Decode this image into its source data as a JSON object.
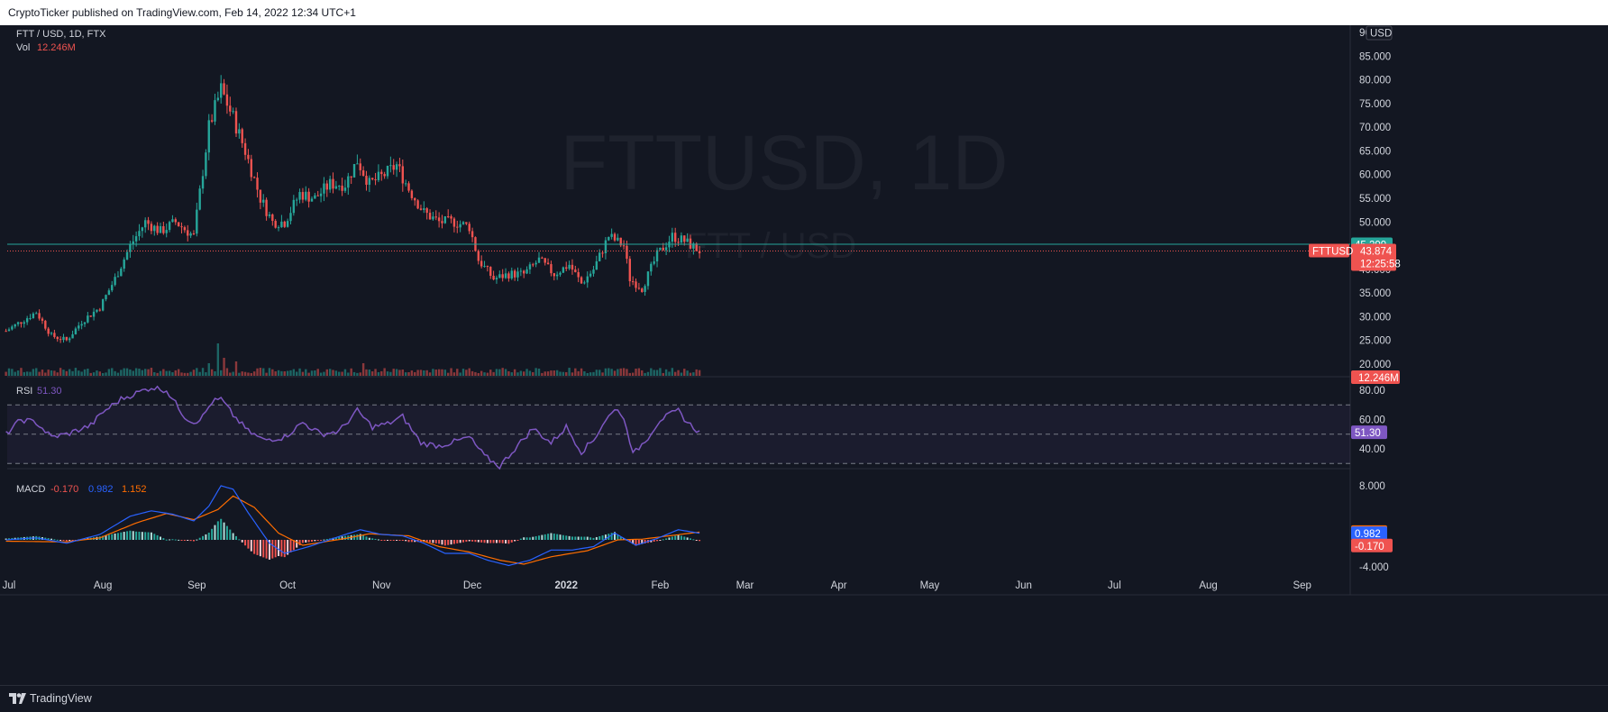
{
  "header": {
    "published_text": "CryptoTicker published on TradingView.com, Feb 14, 2022 12:34 UTC+1"
  },
  "footer": {
    "brand": "TradingView"
  },
  "colors": {
    "up": "#26a69a",
    "down": "#ef5350",
    "rsi": "#7e57c2",
    "macd": "#2962ff",
    "signal": "#ff6d00",
    "background": "#131722"
  },
  "watermark": {
    "symbol": "FTTUSD, 1D",
    "pair": "FTT / USD"
  },
  "chart_data": [
    {
      "type": "candlestick",
      "title": "FTT / USD, 1D, FTX",
      "volume_label": "Vol",
      "volume_value": "12.246M",
      "price_axis": {
        "ticks": [
          "90.000",
          "85.000",
          "80.000",
          "75.000",
          "70.000",
          "65.000",
          "60.000",
          "55.000",
          "50.000",
          "45.000",
          "40.000",
          "35.000",
          "30.000",
          "25.000",
          "20.000"
        ],
        "ylim": [
          20,
          90
        ],
        "currency": "USD"
      },
      "x_axis": {
        "ticks": [
          "Jul",
          "Aug",
          "Sep",
          "Oct",
          "Nov",
          "Dec",
          "2022",
          "Feb",
          "Mar",
          "Apr",
          "May",
          "Jun",
          "Jul",
          "Aug",
          "Sep"
        ]
      },
      "price_keypoints": [
        [
          "2021-06-30",
          27
        ],
        [
          "2021-07-05",
          29
        ],
        [
          "2021-07-10",
          31
        ],
        [
          "2021-07-15",
          26
        ],
        [
          "2021-07-20",
          25
        ],
        [
          "2021-07-25",
          29
        ],
        [
          "2021-07-31",
          32
        ],
        [
          "2021-08-05",
          38
        ],
        [
          "2021-08-10",
          45
        ],
        [
          "2021-08-15",
          50
        ],
        [
          "2021-08-20",
          48
        ],
        [
          "2021-08-25",
          50
        ],
        [
          "2021-08-31",
          47
        ],
        [
          "2021-09-05",
          70
        ],
        [
          "2021-09-09",
          78
        ],
        [
          "2021-09-13",
          72
        ],
        [
          "2021-09-17",
          65
        ],
        [
          "2021-09-22",
          55
        ],
        [
          "2021-09-26",
          50
        ],
        [
          "2021-09-30",
          50
        ],
        [
          "2021-10-05",
          56
        ],
        [
          "2021-10-10",
          55
        ],
        [
          "2021-10-15",
          58
        ],
        [
          "2021-10-20",
          58
        ],
        [
          "2021-10-24",
          63
        ],
        [
          "2021-10-28",
          58
        ],
        [
          "2021-11-02",
          60
        ],
        [
          "2021-11-06",
          62
        ],
        [
          "2021-11-10",
          57
        ],
        [
          "2021-11-15",
          52
        ],
        [
          "2021-11-20",
          50
        ],
        [
          "2021-11-25",
          50
        ],
        [
          "2021-11-30",
          49
        ],
        [
          "2021-12-03",
          42
        ],
        [
          "2021-12-08",
          38
        ],
        [
          "2021-12-13",
          39
        ],
        [
          "2021-12-18",
          39
        ],
        [
          "2021-12-23",
          42
        ],
        [
          "2021-12-28",
          39
        ],
        [
          "2022-01-02",
          41
        ],
        [
          "2022-01-06",
          37
        ],
        [
          "2022-01-10",
          40
        ],
        [
          "2022-01-15",
          47
        ],
        [
          "2022-01-20",
          45
        ],
        [
          "2022-01-22",
          38
        ],
        [
          "2022-01-26",
          36
        ],
        [
          "2022-01-31",
          43
        ],
        [
          "2022-02-05",
          47
        ],
        [
          "2022-02-09",
          46
        ],
        [
          "2022-02-14",
          43.874
        ]
      ],
      "volume_spikes": [
        [
          "2021-09-08",
          36
        ],
        [
          "2021-09-10",
          20
        ],
        [
          "2021-09-05",
          14
        ],
        [
          "2021-09-14",
          16
        ],
        [
          "2021-10-26",
          14
        ],
        [
          "2022-01-24",
          8
        ],
        [
          "2021-11-08",
          7
        ]
      ],
      "current_price": "43.874",
      "countdown": "12:25:58",
      "symbol_tag": "FTTUSD",
      "high_line_price": "45.299",
      "volume_tag": "12.246M"
    },
    {
      "type": "line",
      "title": "RSI",
      "value": "51.30",
      "ticks": [
        "80.00",
        "60.00",
        "40.00"
      ],
      "ylim": [
        20,
        90
      ],
      "band": [
        30,
        70
      ],
      "middle": 50,
      "keypoints": [
        [
          "2021-06-30",
          50
        ],
        [
          "2021-07-05",
          60
        ],
        [
          "2021-07-10",
          58
        ],
        [
          "2021-07-15",
          48
        ],
        [
          "2021-07-20",
          50
        ],
        [
          "2021-07-28",
          56
        ],
        [
          "2021-08-01",
          65
        ],
        [
          "2021-08-07",
          74
        ],
        [
          "2021-08-12",
          78
        ],
        [
          "2021-08-17",
          82
        ],
        [
          "2021-08-22",
          80
        ],
        [
          "2021-08-28",
          62
        ],
        [
          "2021-08-31",
          58
        ],
        [
          "2021-09-03",
          62
        ],
        [
          "2021-09-06",
          72
        ],
        [
          "2021-09-09",
          74
        ],
        [
          "2021-09-13",
          63
        ],
        [
          "2021-09-18",
          52
        ],
        [
          "2021-09-23",
          46
        ],
        [
          "2021-09-30",
          48
        ],
        [
          "2021-10-06",
          58
        ],
        [
          "2021-10-12",
          50
        ],
        [
          "2021-10-18",
          52
        ],
        [
          "2021-10-24",
          66
        ],
        [
          "2021-10-29",
          55
        ],
        [
          "2021-11-03",
          57
        ],
        [
          "2021-11-08",
          62
        ],
        [
          "2021-11-14",
          44
        ],
        [
          "2021-11-20",
          42
        ],
        [
          "2021-11-27",
          46
        ],
        [
          "2021-11-30",
          48
        ],
        [
          "2021-12-05",
          35
        ],
        [
          "2021-12-10",
          28
        ],
        [
          "2021-12-15",
          40
        ],
        [
          "2021-12-21",
          54
        ],
        [
          "2021-12-27",
          44
        ],
        [
          "2022-01-01",
          55
        ],
        [
          "2022-01-06",
          38
        ],
        [
          "2022-01-10",
          46
        ],
        [
          "2022-01-14",
          60
        ],
        [
          "2022-01-18",
          68
        ],
        [
          "2022-01-21",
          55
        ],
        [
          "2022-01-23",
          36
        ],
        [
          "2022-01-28",
          48
        ],
        [
          "2022-02-01",
          60
        ],
        [
          "2022-02-07",
          66
        ],
        [
          "2022-02-10",
          58
        ],
        [
          "2022-02-14",
          51.3
        ]
      ]
    },
    {
      "type": "line",
      "title": "MACD",
      "macd_label": "-0.170",
      "macd_value_label": "0.982",
      "signal_value_label": "1.152",
      "ticks": [
        "8.000",
        "-4.000"
      ],
      "ylim": [
        -5,
        9
      ],
      "macd_keypoints": [
        [
          "2021-06-30",
          0
        ],
        [
          "2021-07-10",
          0.3
        ],
        [
          "2021-07-20",
          -0.5
        ],
        [
          "2021-07-31",
          0.8
        ],
        [
          "2021-08-10",
          3.5
        ],
        [
          "2021-08-17",
          4.3
        ],
        [
          "2021-08-24",
          3.8
        ],
        [
          "2021-08-31",
          2.8
        ],
        [
          "2021-09-05",
          5
        ],
        [
          "2021-09-09",
          8
        ],
        [
          "2021-09-13",
          7.5
        ],
        [
          "2021-09-18",
          4
        ],
        [
          "2021-09-25",
          -0.5
        ],
        [
          "2021-09-30",
          -2
        ],
        [
          "2021-10-08",
          -1
        ],
        [
          "2021-10-18",
          0.5
        ],
        [
          "2021-10-25",
          1.5
        ],
        [
          "2021-11-01",
          0.8
        ],
        [
          "2021-11-08",
          0.6
        ],
        [
          "2021-11-15",
          -0.5
        ],
        [
          "2021-11-22",
          -2
        ],
        [
          "2021-11-30",
          -2
        ],
        [
          "2021-12-06",
          -3
        ],
        [
          "2021-12-13",
          -3.8
        ],
        [
          "2021-12-20",
          -3
        ],
        [
          "2021-12-27",
          -1.5
        ],
        [
          "2022-01-03",
          -1.5
        ],
        [
          "2022-01-10",
          -1
        ],
        [
          "2022-01-17",
          1
        ],
        [
          "2022-01-24",
          -0.8
        ],
        [
          "2022-01-31",
          0.2
        ],
        [
          "2022-02-07",
          1.5
        ],
        [
          "2022-02-14",
          0.982
        ]
      ],
      "signal_keypoints": [
        [
          "2021-06-30",
          -0.2
        ],
        [
          "2021-07-20",
          -0.3
        ],
        [
          "2021-07-31",
          0.3
        ],
        [
          "2021-08-12",
          2.5
        ],
        [
          "2021-08-22",
          3.9
        ],
        [
          "2021-08-31",
          3
        ],
        [
          "2021-09-08",
          4.5
        ],
        [
          "2021-09-13",
          6.5
        ],
        [
          "2021-09-20",
          4.8
        ],
        [
          "2021-09-28",
          1
        ],
        [
          "2021-10-06",
          -0.8
        ],
        [
          "2021-10-20",
          0.2
        ],
        [
          "2021-10-28",
          0.9
        ],
        [
          "2021-11-10",
          0.6
        ],
        [
          "2021-11-20",
          -1
        ],
        [
          "2021-11-30",
          -1.8
        ],
        [
          "2021-12-10",
          -3
        ],
        [
          "2021-12-18",
          -3.6
        ],
        [
          "2021-12-27",
          -2.5
        ],
        [
          "2022-01-08",
          -1.6
        ],
        [
          "2022-01-18",
          0
        ],
        [
          "2022-01-26",
          0.1
        ],
        [
          "2022-02-04",
          0.6
        ],
        [
          "2022-02-14",
          1.152
        ]
      ]
    }
  ]
}
